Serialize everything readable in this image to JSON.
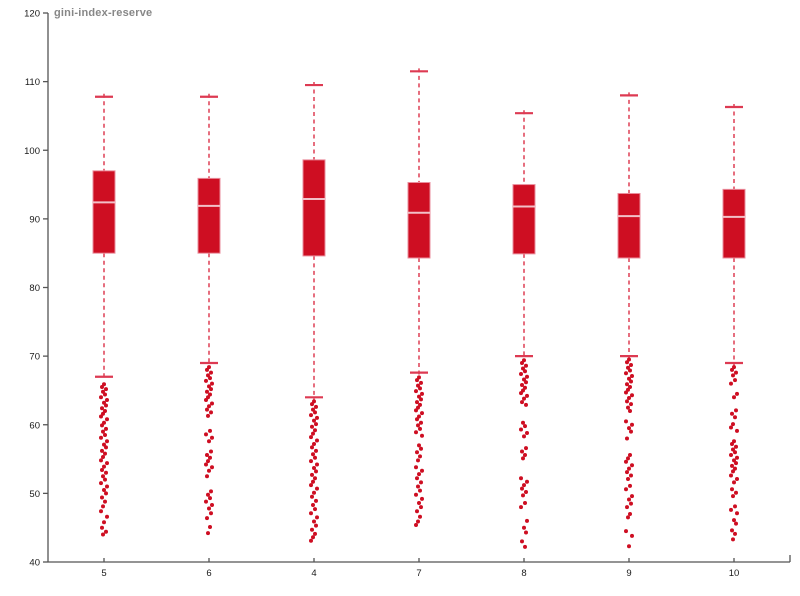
{
  "title": "gini-index-reserve",
  "colors": {
    "background": "#ffffff",
    "box_fill": "#ce0e22",
    "box_stroke": "#ea8e9c",
    "median": "#f2c0c8",
    "whisker": "#e04a5e",
    "cap": "#dd3a52",
    "outlier": "#ce0e22",
    "axis": "#555555",
    "tick_label": "#1a1a1a",
    "title_color": "#878787"
  },
  "chart_data": {
    "type": "box",
    "title": "gini-index-reserve",
    "xlabel": "",
    "ylabel": "",
    "ylim": [
      40,
      120
    ],
    "y_ticks": [
      120,
      110,
      100,
      90,
      80,
      70,
      60,
      50,
      40
    ],
    "grid": false,
    "legend": "none",
    "categories": [
      "5",
      "6",
      "4",
      "7",
      "8",
      "9",
      "10"
    ],
    "boxes": [
      {
        "category": "5",
        "whisker_high": 107.8,
        "q3": 97.0,
        "median": 92.4,
        "q1": 85.0,
        "whisker_low": 67.0,
        "outliers": [
          65.9,
          65.5,
          65.2,
          64.8,
          64.4,
          64.0,
          63.6,
          63.2,
          62.8,
          62.4,
          62.0,
          61.6,
          61.2,
          60.8,
          60.3,
          59.9,
          59.4,
          59.0,
          58.5,
          58.1,
          57.6,
          57.1,
          56.7,
          56.2,
          55.8,
          55.3,
          54.8,
          54.4,
          53.9,
          53.4,
          53.0,
          52.5,
          52.0,
          51.5,
          51.0,
          50.5,
          50.0,
          49.4,
          48.8,
          48.1,
          47.4,
          46.6,
          45.8,
          45.0,
          44.4,
          44.0
        ]
      },
      {
        "category": "6",
        "whisker_high": 107.8,
        "q3": 95.9,
        "median": 91.9,
        "q1": 85.0,
        "whisker_low": 69.0,
        "outliers": [
          68.4,
          68.0,
          67.6,
          67.2,
          66.8,
          66.4,
          66.0,
          65.6,
          65.2,
          64.8,
          64.4,
          64.0,
          63.6,
          63.1,
          62.7,
          62.2,
          61.8,
          61.3,
          59.1,
          58.6,
          58.1,
          57.6,
          56.1,
          55.6,
          55.2,
          54.7,
          54.2,
          53.8,
          53.3,
          52.5,
          50.3,
          49.8,
          49.3,
          48.8,
          48.3,
          47.8,
          47.1,
          46.4,
          45.1,
          44.2
        ]
      },
      {
        "category": "4",
        "whisker_high": 109.5,
        "q3": 98.6,
        "median": 92.9,
        "q1": 84.6,
        "whisker_low": 64.0,
        "outliers": [
          63.4,
          63.0,
          62.6,
          62.2,
          61.8,
          61.4,
          61.0,
          60.6,
          60.1,
          59.7,
          59.2,
          58.7,
          58.2,
          57.7,
          57.2,
          56.7,
          56.2,
          55.7,
          55.2,
          54.7,
          54.2,
          53.7,
          53.2,
          52.7,
          52.2,
          51.7,
          51.2,
          50.7,
          50.1,
          49.5,
          48.9,
          48.3,
          47.7,
          47.1,
          46.5,
          45.9,
          45.3,
          44.7,
          44.1,
          43.6,
          43.1
        ]
      },
      {
        "category": "7",
        "whisker_high": 111.5,
        "q3": 95.3,
        "median": 90.9,
        "q1": 84.3,
        "whisker_low": 67.6,
        "outliers": [
          66.9,
          66.5,
          66.1,
          65.7,
          65.3,
          64.9,
          64.5,
          64.1,
          63.7,
          63.3,
          62.9,
          62.5,
          62.1,
          61.7,
          61.2,
          60.8,
          60.3,
          59.9,
          59.4,
          58.9,
          58.4,
          57.0,
          56.5,
          56.0,
          55.4,
          54.8,
          53.8,
          53.3,
          52.8,
          52.2,
          51.6,
          51.0,
          50.4,
          49.8,
          49.2,
          48.6,
          48.0,
          47.4,
          46.6,
          45.9,
          45.4
        ]
      },
      {
        "category": "8",
        "whisker_high": 105.4,
        "q3": 95.0,
        "median": 91.8,
        "q1": 84.9,
        "whisker_low": 70.0,
        "outliers": [
          69.4,
          69.0,
          68.6,
          68.2,
          67.8,
          67.4,
          67.0,
          66.6,
          66.2,
          65.8,
          65.4,
          65.0,
          64.6,
          64.2,
          63.8,
          63.3,
          62.9,
          60.3,
          59.8,
          59.3,
          58.8,
          58.3,
          56.6,
          56.1,
          55.6,
          55.1,
          52.2,
          51.7,
          51.2,
          50.7,
          50.2,
          49.7,
          48.6,
          48.0,
          46.0,
          45.0,
          44.3,
          43.0,
          42.2
        ]
      },
      {
        "category": "9",
        "whisker_high": 108.0,
        "q3": 93.7,
        "median": 90.4,
        "q1": 84.3,
        "whisker_low": 70.0,
        "outliers": [
          69.5,
          69.1,
          68.7,
          68.3,
          67.9,
          67.5,
          67.1,
          66.7,
          66.3,
          65.9,
          65.5,
          65.1,
          64.7,
          64.3,
          63.9,
          63.4,
          63.0,
          62.5,
          62.0,
          60.5,
          60.0,
          59.5,
          59.0,
          58.0,
          55.6,
          55.1,
          54.6,
          54.1,
          53.6,
          53.1,
          52.6,
          52.1,
          51.1,
          50.6,
          49.6,
          49.1,
          48.5,
          48.0,
          47.0,
          46.5,
          44.5,
          43.8,
          42.3
        ]
      },
      {
        "category": "10",
        "whisker_high": 106.3,
        "q3": 94.3,
        "median": 90.3,
        "q1": 84.3,
        "whisker_low": 69.0,
        "outliers": [
          68.4,
          68.0,
          67.6,
          67.2,
          66.5,
          66.0,
          64.5,
          64.0,
          62.1,
          61.6,
          61.1,
          60.1,
          59.6,
          59.1,
          57.6,
          57.2,
          56.8,
          56.4,
          56.0,
          55.6,
          55.2,
          54.8,
          54.4,
          54.0,
          53.6,
          53.2,
          52.6,
          52.1,
          51.6,
          50.6,
          50.1,
          49.6,
          48.1,
          47.6,
          47.1,
          46.1,
          45.6,
          44.6,
          44.1,
          43.3
        ]
      }
    ]
  }
}
